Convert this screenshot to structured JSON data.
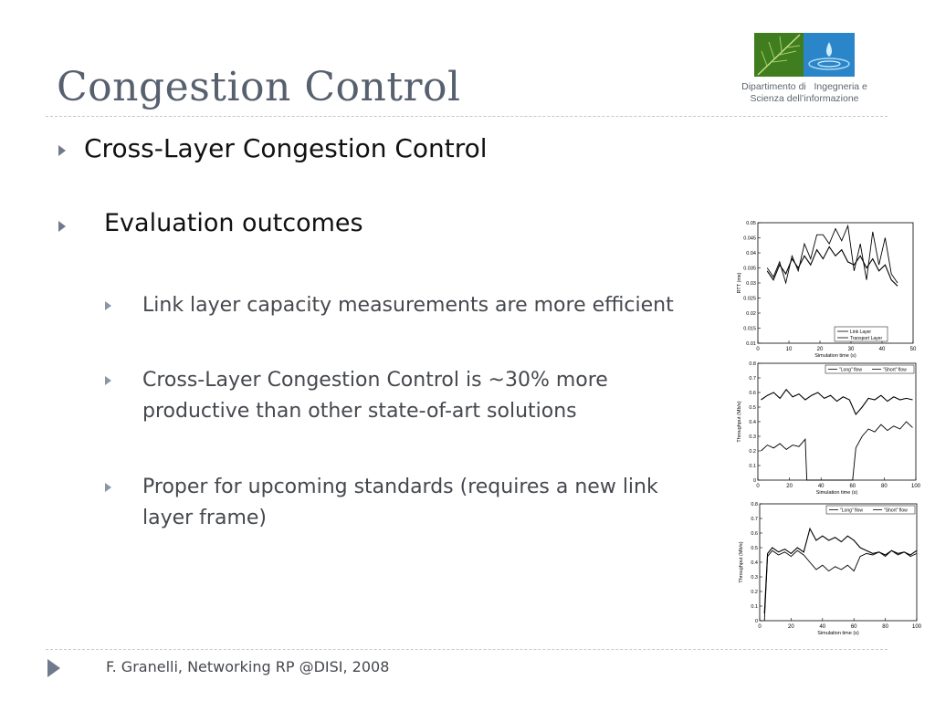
{
  "slide": {
    "title": "Congestion Control",
    "department_line1": "Dipartimento di   Ingegneria e",
    "department_line2": "Scienza dell’informazione",
    "bullets": [
      {
        "text": "Cross-Layer Congestion Control",
        "level": 1
      },
      {
        "text": "Evaluation outcomes",
        "level": 1
      },
      {
        "text": "Link layer capacity measurements are more efficient",
        "level": 2
      },
      {
        "text": "Cross-Layer Congestion Control is ~30% more productive than other state-of-art solutions",
        "level": 2
      },
      {
        "text": "Proper for upcoming standards (requires a new link layer frame)",
        "level": 2
      }
    ],
    "footer": "F. Granelli, Networking RP @DISI, 2008",
    "logo_icons": [
      "leaf-image",
      "water-drop-image"
    ]
  },
  "chart_data": [
    {
      "type": "line",
      "xlabel": "Simulation time (s)",
      "ylabel": "RTT (ms)",
      "xlim": [
        0,
        50
      ],
      "ylim": [
        0.01,
        0.05
      ],
      "xticks": [
        "0",
        "10",
        "20",
        "30",
        "40",
        "50"
      ],
      "yticks": [
        "0.01",
        "0.015",
        "0.02",
        "0.025",
        "0.03",
        "0.035",
        "0.04",
        "0.045",
        "0.05"
      ],
      "legend_position": "bottom-right",
      "series": [
        {
          "name": "Link Layer",
          "x": [
            3,
            5,
            7,
            9,
            11,
            13,
            15,
            17,
            19,
            21,
            23,
            25,
            27,
            29,
            31,
            33,
            35,
            37,
            39,
            41,
            43,
            45
          ],
          "y": [
            0.034,
            0.031,
            0.036,
            0.033,
            0.038,
            0.035,
            0.039,
            0.036,
            0.041,
            0.038,
            0.042,
            0.039,
            0.041,
            0.037,
            0.036,
            0.039,
            0.035,
            0.038,
            0.034,
            0.036,
            0.031,
            0.029
          ]
        },
        {
          "name": "Transport Layer",
          "x": [
            3,
            5,
            7,
            9,
            11,
            13,
            15,
            17,
            19,
            21,
            23,
            25,
            27,
            29,
            31,
            33,
            35,
            37,
            39,
            41,
            43,
            45
          ],
          "y": [
            0.035,
            0.032,
            0.037,
            0.03,
            0.039,
            0.034,
            0.043,
            0.038,
            0.046,
            0.046,
            0.043,
            0.048,
            0.044,
            0.049,
            0.034,
            0.043,
            0.031,
            0.047,
            0.036,
            0.045,
            0.033,
            0.03
          ]
        }
      ]
    },
    {
      "type": "line",
      "xlabel": "Simulation time (s)",
      "ylabel": "Throughput (Mb/s)",
      "xlim": [
        0,
        100
      ],
      "ylim": [
        0,
        0.8
      ],
      "xticks": [
        "0",
        "20",
        "40",
        "60",
        "80",
        "100"
      ],
      "yticks": [
        "0",
        "0.1",
        "0.2",
        "0.3",
        "0.4",
        "0.5",
        "0.6",
        "0.7",
        "0.8"
      ],
      "legend_position": "top-right",
      "series": [
        {
          "name": "\"Long\" flow",
          "x": [
            2,
            6,
            10,
            14,
            18,
            22,
            26,
            30,
            34,
            38,
            42,
            46,
            50,
            54,
            58,
            62,
            66,
            70,
            74,
            78,
            82,
            86,
            90,
            94,
            98
          ],
          "y": [
            0.55,
            0.58,
            0.6,
            0.56,
            0.62,
            0.57,
            0.59,
            0.55,
            0.58,
            0.6,
            0.56,
            0.58,
            0.54,
            0.57,
            0.55,
            0.45,
            0.5,
            0.56,
            0.55,
            0.58,
            0.54,
            0.57,
            0.55,
            0.56,
            0.55
          ]
        },
        {
          "name": "\"Short\" flow",
          "x": [
            2,
            6,
            10,
            14,
            18,
            22,
            26,
            30,
            31,
            60,
            62,
            66,
            70,
            74,
            78,
            82,
            86,
            90,
            94,
            98
          ],
          "y": [
            0.2,
            0.24,
            0.22,
            0.25,
            0.21,
            0.24,
            0.23,
            0.28,
            0.0,
            0.0,
            0.22,
            0.3,
            0.35,
            0.33,
            0.38,
            0.34,
            0.37,
            0.35,
            0.4,
            0.36
          ]
        }
      ]
    },
    {
      "type": "line",
      "xlabel": "Simulation time (s)",
      "ylabel": "Throughput (Mb/s)",
      "xlim": [
        0,
        100
      ],
      "ylim": [
        0,
        0.8
      ],
      "xticks": [
        "0",
        "20",
        "40",
        "60",
        "80",
        "100"
      ],
      "yticks": [
        "0",
        "0.1",
        "0.2",
        "0.3",
        "0.4",
        "0.5",
        "0.6",
        "0.7",
        "0.8"
      ],
      "legend_position": "top-right",
      "series": [
        {
          "name": "\"Long\" flow",
          "x": [
            3,
            5,
            8,
            12,
            16,
            20,
            24,
            28,
            32,
            36,
            40,
            44,
            48,
            52,
            56,
            60,
            64,
            68,
            72,
            76,
            80,
            84,
            88,
            92,
            96,
            100
          ],
          "y": [
            0.05,
            0.46,
            0.5,
            0.47,
            0.49,
            0.46,
            0.5,
            0.47,
            0.63,
            0.55,
            0.58,
            0.55,
            0.57,
            0.54,
            0.58,
            0.55,
            0.5,
            0.48,
            0.46,
            0.47,
            0.45,
            0.48,
            0.46,
            0.47,
            0.45,
            0.48
          ]
        },
        {
          "name": "\"Short\" flow",
          "x": [
            3,
            5,
            8,
            12,
            16,
            20,
            24,
            28,
            32,
            36,
            40,
            44,
            48,
            52,
            56,
            60,
            64,
            68,
            72,
            76,
            80,
            84,
            88,
            92,
            96,
            100
          ],
          "y": [
            0.0,
            0.44,
            0.48,
            0.45,
            0.47,
            0.44,
            0.48,
            0.45,
            0.4,
            0.35,
            0.38,
            0.34,
            0.37,
            0.35,
            0.38,
            0.34,
            0.44,
            0.46,
            0.45,
            0.47,
            0.44,
            0.48,
            0.45,
            0.47,
            0.44,
            0.46
          ]
        }
      ]
    }
  ]
}
